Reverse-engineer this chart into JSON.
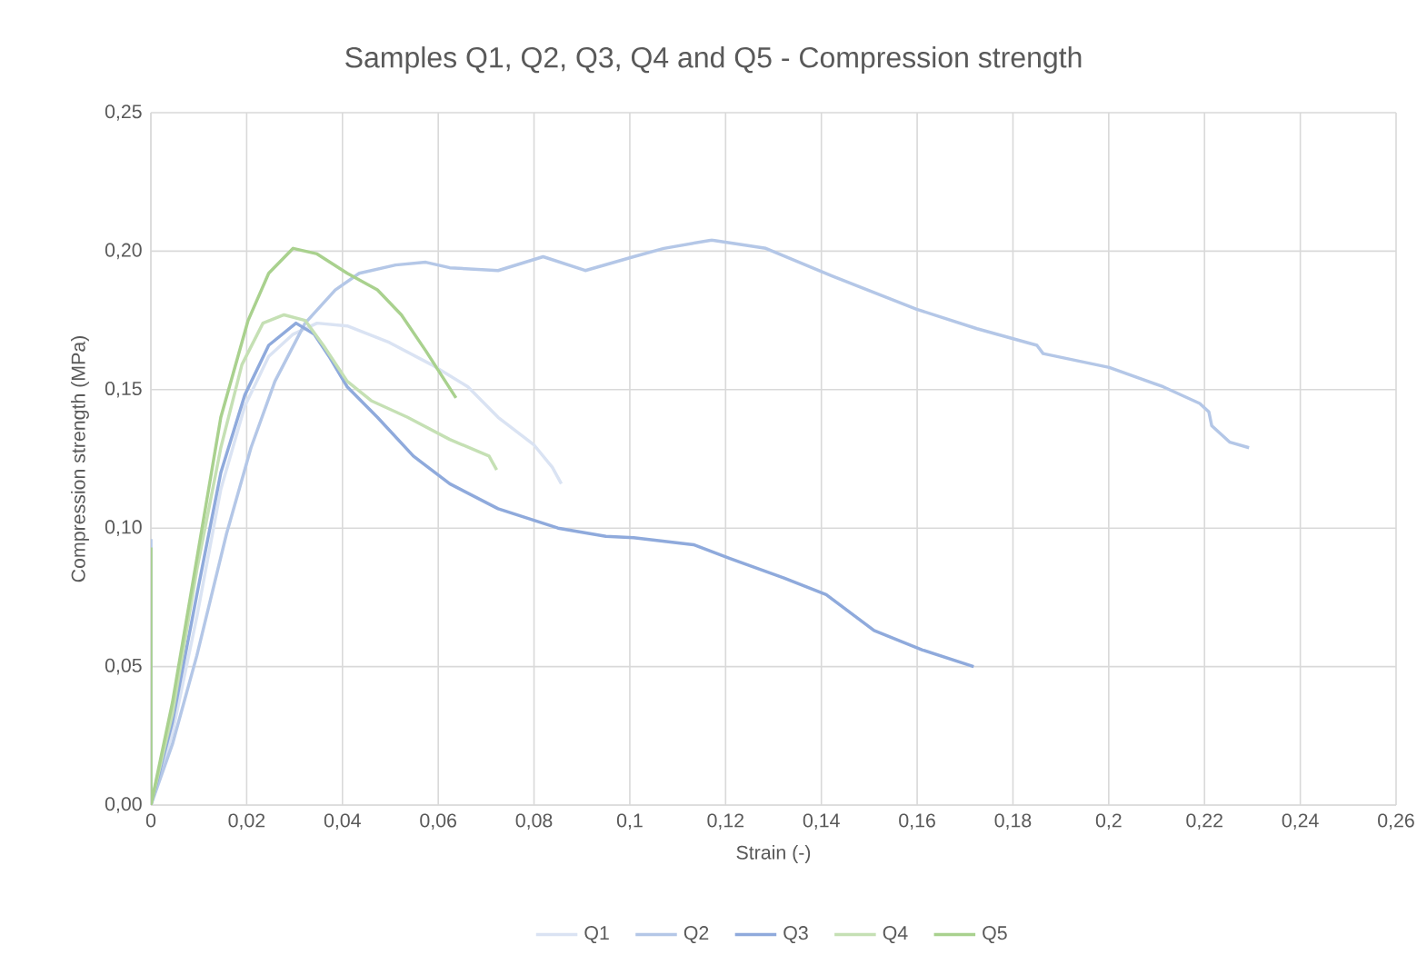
{
  "chart_data": {
    "type": "line",
    "title": "Samples Q1, Q2, Q3, Q4 and Q5 - Compression strength",
    "xlabel": "Strain (-)",
    "ylabel": "Compression strength (MPa)",
    "xlim": [
      0,
      0.26
    ],
    "ylim": [
      0,
      0.25
    ],
    "xticks": [
      0,
      {
        "value": 0.02,
        "label": "0,02"
      },
      {
        "value": 0.04,
        "label": "0,04"
      },
      {
        "value": 0.06,
        "label": "0,06"
      },
      {
        "value": 0.08,
        "label": "0,08"
      },
      {
        "value": 0.1,
        "label": "0,1"
      },
      {
        "value": 0.12,
        "label": "0,12"
      },
      {
        "value": 0.14,
        "label": "0,14"
      },
      {
        "value": 0.16,
        "label": "0,16"
      },
      {
        "value": 0.18,
        "label": "0,18"
      },
      {
        "value": 0.2,
        "label": "0,2"
      },
      {
        "value": 0.22,
        "label": "0,22"
      },
      {
        "value": 0.24,
        "label": "0,24"
      },
      {
        "value": 0.26,
        "label": "0,26"
      }
    ],
    "yticks": [
      {
        "value": 0,
        "label": "0,00"
      },
      {
        "value": 0.05,
        "label": "0,05"
      },
      {
        "value": 0.1,
        "label": "0,10"
      },
      {
        "value": 0.15,
        "label": "0,15"
      },
      {
        "value": 0.2,
        "label": "0,20"
      },
      {
        "value": 0.25,
        "label": "0,25"
      }
    ],
    "grid": true,
    "legend": "bottom",
    "marker": "none",
    "line_style": "solid",
    "series": [
      {
        "name": "Q1",
        "color": "#dae3f3",
        "x": [
          0,
          0.0045,
          0.0096,
          0.0146,
          0.0196,
          0.0246,
          0.0297,
          0.0347,
          0.041,
          0.0498,
          0.0586,
          0.0662,
          0.0725,
          0.08,
          0.0838,
          0.0857
        ],
        "values": [
          0,
          0.026,
          0.068,
          0.114,
          0.144,
          0.162,
          0.17,
          0.174,
          0.173,
          0.167,
          0.159,
          0.151,
          0.14,
          0.13,
          0.122,
          0.116
        ]
      },
      {
        "name": "Q2",
        "color": "#b4c7e7",
        "x": [
          0,
          0,
          0.0045,
          0.0096,
          0.0158,
          0.0209,
          0.0259,
          0.0322,
          0.0385,
          0.0435,
          0.0511,
          0.0574,
          0.0624,
          0.0725,
          0.0819,
          0.0907,
          0.1008,
          0.1071,
          0.1171,
          0.1284,
          0.1423,
          0.1599,
          0.1725,
          0.185,
          0.1863,
          0.2001,
          0.2114,
          0.219,
          0.2209,
          0.2215,
          0.2253,
          0.2293
        ],
        "values": [
          0.096,
          0,
          0.022,
          0.054,
          0.098,
          0.129,
          0.153,
          0.174,
          0.186,
          0.192,
          0.195,
          0.196,
          0.194,
          0.193,
          0.198,
          0.193,
          0.198,
          0.201,
          0.204,
          0.201,
          0.191,
          0.179,
          0.172,
          0.166,
          0.163,
          0.158,
          0.151,
          0.145,
          0.142,
          0.137,
          0.131,
          0.129
        ]
      },
      {
        "name": "Q3",
        "color": "#8faadc",
        "x": [
          0,
          0.0045,
          0.0096,
          0.0146,
          0.0196,
          0.0246,
          0.0303,
          0.0341,
          0.0372,
          0.041,
          0.0473,
          0.0548,
          0.0624,
          0.0725,
          0.085,
          0.095,
          0.1008,
          0.1133,
          0.1209,
          0.1322,
          0.141,
          0.151,
          0.1611,
          0.1718
        ],
        "values": [
          0,
          0.03,
          0.076,
          0.12,
          0.148,
          0.166,
          0.174,
          0.17,
          0.162,
          0.151,
          0.14,
          0.126,
          0.116,
          0.107,
          0.1,
          0.097,
          0.0965,
          0.094,
          0.089,
          0.082,
          0.076,
          0.063,
          0.056,
          0.05
        ]
      },
      {
        "name": "Q4",
        "color": "#c5e0b4",
        "x": [
          0,
          0.0045,
          0.0096,
          0.0146,
          0.019,
          0.0234,
          0.0278,
          0.0322,
          0.036,
          0.041,
          0.046,
          0.0536,
          0.0624,
          0.0706,
          0.0722
        ],
        "values": [
          0,
          0.033,
          0.085,
          0.129,
          0.159,
          0.174,
          0.177,
          0.175,
          0.166,
          0.153,
          0.146,
          0.14,
          0.132,
          0.126,
          0.121
        ]
      },
      {
        "name": "Q5",
        "color": "#a9d18e",
        "x": [
          0,
          0,
          0.0045,
          0.0096,
          0.0146,
          0.0203,
          0.0246,
          0.0297,
          0.0347,
          0.041,
          0.0473,
          0.0523,
          0.0574,
          0.0637
        ],
        "values": [
          0.093,
          0,
          0.037,
          0.089,
          0.14,
          0.175,
          0.192,
          0.201,
          0.199,
          0.192,
          0.186,
          0.177,
          0.164,
          0.147
        ]
      }
    ]
  }
}
